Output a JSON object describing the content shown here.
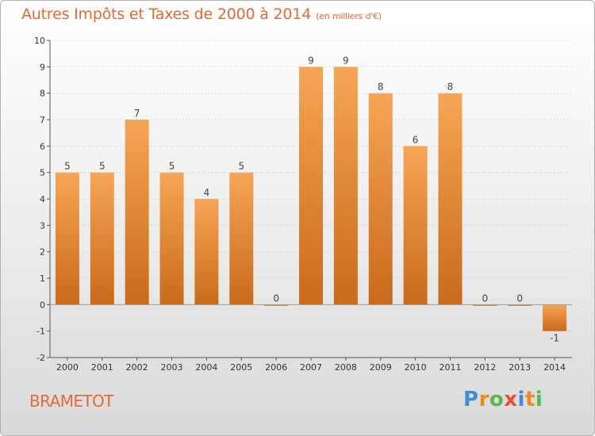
{
  "title": "Autres Impôts et Taxes de 2000 à 2014",
  "subtitle": "(en milliers d'€)",
  "place": "BRAMETOT",
  "logo": {
    "letters": [
      "P",
      "r",
      "o",
      "x",
      "i",
      "t",
      "i"
    ],
    "colors": [
      "#3a8fd8",
      "#f08a1c",
      "#58b848",
      "#e84f2c",
      "#3a8fd8",
      "#f08a1c",
      "#58b848"
    ]
  },
  "colors": {
    "title": "#e06a3a",
    "bar_light": "#f6a556",
    "bar_dark": "#c96a1c",
    "axis": "#555555",
    "grid": "#c8c8c8"
  },
  "chart_data": {
    "type": "bar",
    "categories": [
      "2000",
      "2001",
      "2002",
      "2003",
      "2004",
      "2005",
      "2006",
      "2007",
      "2008",
      "2009",
      "2010",
      "2011",
      "2012",
      "2013",
      "2014"
    ],
    "values": [
      5,
      5,
      7,
      5,
      4,
      5,
      0,
      9,
      9,
      8,
      6,
      8,
      0,
      0,
      -1
    ],
    "labels": [
      "5",
      "5",
      "7",
      "5",
      "4",
      "5",
      "0",
      "9",
      "9",
      "8",
      "6",
      "8",
      "0",
      "0",
      "-1"
    ],
    "yticks": [
      -2,
      -1,
      0,
      1,
      2,
      3,
      4,
      5,
      6,
      7,
      8,
      9,
      10
    ],
    "ylim": [
      -2,
      10
    ],
    "grid": true,
    "title": "Autres Impôts et Taxes de 2000 à 2014",
    "xlabel": "",
    "ylabel": ""
  }
}
